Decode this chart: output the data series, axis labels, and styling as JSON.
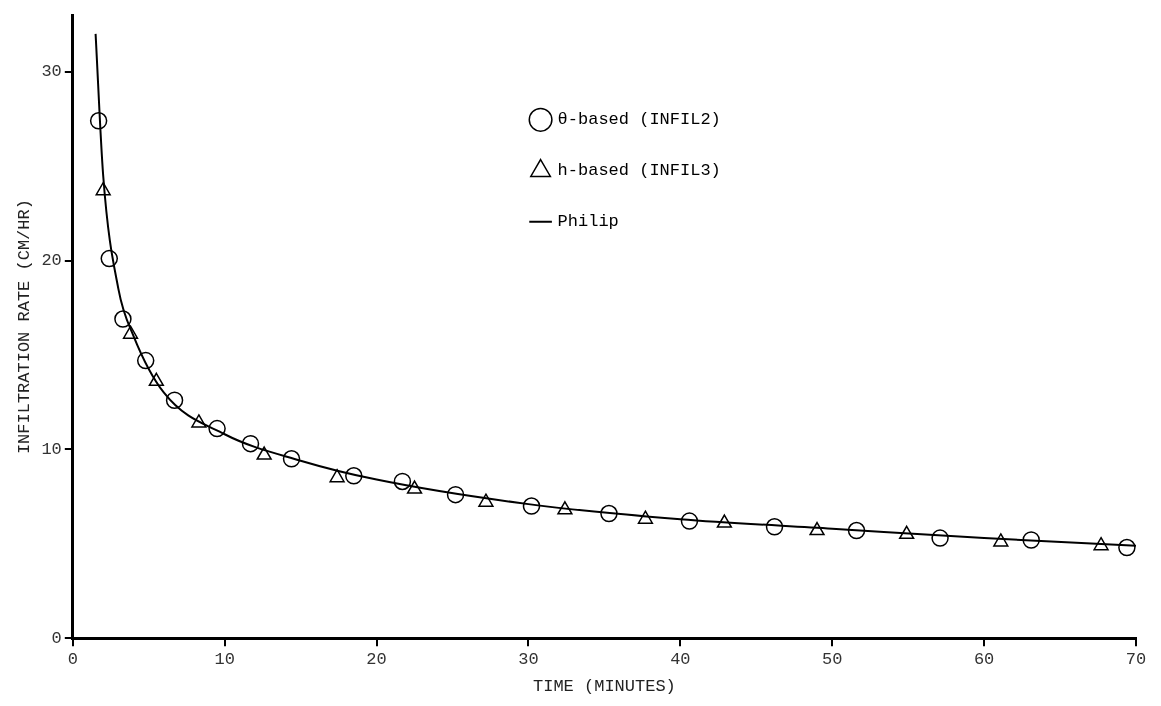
{
  "chart_data": {
    "type": "scatter",
    "xlabel": "TIME (MINUTES)",
    "ylabel": "INFILTRATION RATE (CM/HR)",
    "xlim": [
      0,
      70
    ],
    "xticks": [
      0,
      10,
      20,
      30,
      40,
      50,
      60,
      70
    ],
    "ylim": [
      0,
      33
    ],
    "yticks": [
      0,
      10,
      20,
      30
    ],
    "grid": false,
    "legend": "top",
    "series": [
      {
        "name": "θ-based (INFIL2)",
        "type": "scatter",
        "marker": "circle",
        "color": "#000000",
        "x": [
          1.7,
          2.4,
          3.3,
          4.8,
          6.7,
          9.5,
          11.7,
          14.4,
          18.5,
          21.7,
          25.2,
          30.2,
          35.3,
          40.6,
          46.2,
          51.6,
          57.1,
          63.1,
          69.4
        ],
        "values": [
          27.4,
          20.1,
          16.9,
          14.7,
          12.6,
          11.1,
          10.3,
          9.5,
          8.6,
          8.3,
          7.6,
          7.0,
          6.6,
          6.2,
          5.9,
          5.7,
          5.3,
          5.2,
          4.8
        ]
      },
      {
        "name": "h-based (INFIL3)",
        "type": "scatter",
        "marker": "triangle",
        "color": "#000000",
        "x": [
          2.0,
          3.8,
          5.5,
          8.3,
          12.6,
          17.4,
          22.5,
          27.2,
          32.4,
          37.7,
          42.9,
          49.0,
          54.9,
          61.1,
          67.7
        ],
        "values": [
          23.7,
          16.1,
          13.6,
          11.4,
          9.7,
          8.5,
          7.9,
          7.2,
          6.8,
          6.3,
          6.1,
          5.7,
          5.5,
          5.1,
          4.9
        ]
      },
      {
        "name": "Philip",
        "type": "line",
        "marker": "none",
        "line_style": "solid",
        "color": "#000000",
        "x": [
          1.5,
          2,
          3,
          4,
          6,
          10,
          15,
          20,
          30,
          40,
          50,
          60,
          70
        ],
        "values": [
          32.0,
          24.5,
          18.5,
          16.0,
          13.0,
          10.8,
          9.4,
          8.4,
          7.1,
          6.3,
          5.8,
          5.3,
          4.9
        ]
      }
    ]
  }
}
